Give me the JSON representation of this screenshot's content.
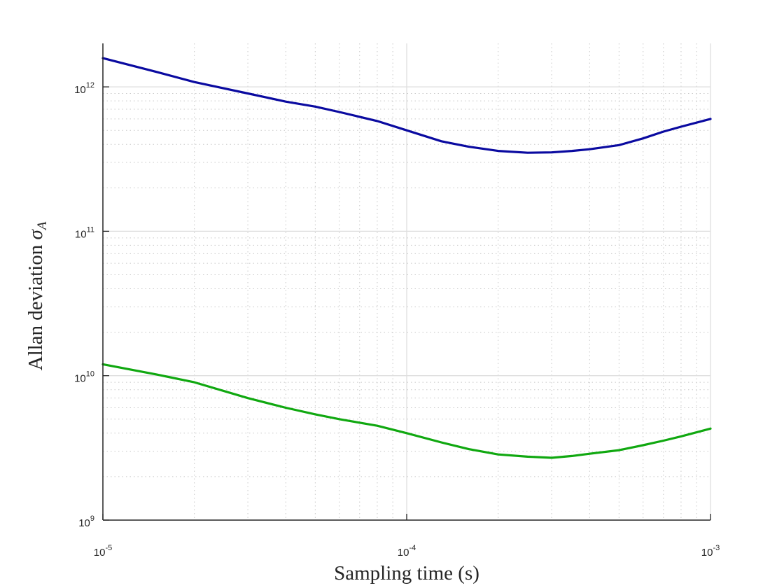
{
  "chart_data": {
    "type": "line",
    "title": "",
    "xlabel": "Sampling time (s)",
    "ylabel_text": "Allan deviation ",
    "ylabel_symbol": "σ",
    "ylabel_subscript": "A",
    "xscale": "log",
    "yscale": "log",
    "xlim": [
      1e-05,
      0.001
    ],
    "ylim": [
      1000000000.0,
      2000000000000.0
    ],
    "grid": true,
    "minor_grid": true,
    "x_ticks": [
      {
        "value": 1e-05,
        "base": "10",
        "exp": "-5"
      },
      {
        "value": 0.0001,
        "base": "10",
        "exp": "-4"
      },
      {
        "value": 0.001,
        "base": "10",
        "exp": "-3"
      }
    ],
    "y_ticks": [
      {
        "value": 1000000000.0,
        "base": "10",
        "exp": "9"
      },
      {
        "value": 10000000000.0,
        "base": "10",
        "exp": "10"
      },
      {
        "value": 100000000000.0,
        "base": "10",
        "exp": "11"
      },
      {
        "value": 1000000000000.0,
        "base": "10",
        "exp": "12"
      }
    ],
    "series": [
      {
        "color": "#0a0aa0",
        "x": [
          1e-05,
          1.5e-05,
          2e-05,
          3e-05,
          4e-05,
          5e-05,
          6e-05,
          8e-05,
          0.0001,
          0.00013,
          0.00016,
          0.0002,
          0.00025,
          0.0003,
          0.00035,
          0.0004,
          0.0005,
          0.0006,
          0.0007,
          0.0008,
          0.001
        ],
        "y": [
          1580000000000.0,
          1270000000000.0,
          1080000000000.0,
          900000000000.0,
          790000000000.0,
          730000000000.0,
          670000000000.0,
          580000000000.0,
          500000000000.0,
          420000000000.0,
          385000000000.0,
          360000000000.0,
          350000000000.0,
          352000000000.0,
          360000000000.0,
          370000000000.0,
          395000000000.0,
          440000000000.0,
          490000000000.0,
          530000000000.0,
          600000000000.0
        ]
      },
      {
        "color": "#10a810",
        "x": [
          1e-05,
          1.5e-05,
          2e-05,
          3e-05,
          4e-05,
          5e-05,
          6e-05,
          8e-05,
          0.0001,
          0.00013,
          0.00016,
          0.0002,
          0.00025,
          0.0003,
          0.00035,
          0.0004,
          0.0005,
          0.0006,
          0.0007,
          0.0008,
          0.001
        ],
        "y": [
          12000000000.0,
          10200000000.0,
          9000000000.0,
          7000000000.0,
          6000000000.0,
          5400000000.0,
          5000000000.0,
          4500000000.0,
          4000000000.0,
          3450000000.0,
          3100000000.0,
          2850000000.0,
          2750000000.0,
          2700000000.0,
          2780000000.0,
          2880000000.0,
          3050000000.0,
          3300000000.0,
          3550000000.0,
          3800000000.0,
          4300000000.0
        ]
      }
    ]
  }
}
